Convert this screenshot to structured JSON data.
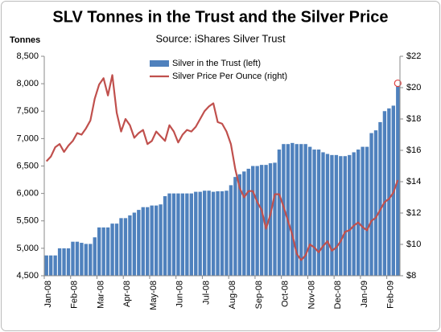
{
  "chart_data": {
    "type": "bar-line",
    "title": "SLV Tonnes in the Trust and the Silver Price",
    "subtitle": "Source: iShares Silver Trust",
    "y_label": "Tonnes",
    "categories": [
      "Jan-08",
      null,
      null,
      null,
      null,
      null,
      "Feb-08",
      null,
      null,
      null,
      null,
      null,
      "Mar-08",
      null,
      null,
      null,
      null,
      null,
      "Apr-08",
      null,
      null,
      null,
      null,
      null,
      "May-08",
      null,
      null,
      null,
      null,
      null,
      "Jun-08",
      null,
      null,
      null,
      null,
      null,
      "Jul-08",
      null,
      null,
      null,
      null,
      null,
      "Aug-08",
      null,
      null,
      null,
      null,
      null,
      "Sep-08",
      null,
      null,
      null,
      null,
      null,
      "Oct-08",
      null,
      null,
      null,
      null,
      null,
      "Nov-08",
      null,
      null,
      null,
      null,
      null,
      "Dec-08",
      null,
      null,
      null,
      null,
      null,
      "Jan-09",
      null,
      null,
      null,
      null,
      null,
      "Feb-09",
      null,
      null
    ],
    "series": [
      {
        "name": "Silver in the Trust (left)",
        "color": "#4f81bd",
        "axis": "y",
        "values": [
          4870,
          4870,
          4870,
          5000,
          5000,
          5000,
          5120,
          5120,
          5100,
          5080,
          5080,
          5200,
          5380,
          5380,
          5380,
          5450,
          5450,
          5550,
          5550,
          5600,
          5650,
          5700,
          5750,
          5750,
          5780,
          5780,
          5800,
          5950,
          6000,
          6000,
          6000,
          6000,
          6000,
          6000,
          6030,
          6030,
          6050,
          6050,
          6030,
          6040,
          6040,
          6050,
          6150,
          6300,
          6350,
          6400,
          6450,
          6500,
          6500,
          6520,
          6520,
          6550,
          6560,
          6800,
          6900,
          6900,
          6920,
          6900,
          6900,
          6900,
          6850,
          6800,
          6800,
          6750,
          6720,
          6700,
          6700,
          6680,
          6680,
          6700,
          6750,
          6800,
          6850,
          6850,
          7100,
          7150,
          7300,
          7500,
          7550,
          7600,
          7950
        ]
      },
      {
        "name": "Silver Price Per Ounce (right)",
        "color": "#c0504d",
        "axis": "y2",
        "values": [
          15.3,
          15.6,
          16.2,
          16.4,
          15.9,
          16.3,
          16.6,
          17.1,
          17.0,
          17.4,
          17.9,
          19.3,
          20.2,
          20.6,
          19.5,
          20.8,
          18.4,
          17.2,
          18.0,
          17.6,
          16.8,
          17.1,
          17.3,
          16.4,
          16.6,
          17.2,
          16.9,
          16.6,
          17.6,
          17.2,
          16.5,
          17.0,
          17.3,
          17.2,
          17.5,
          18.0,
          18.5,
          18.8,
          19.0,
          17.8,
          17.7,
          17.2,
          16.4,
          14.8,
          13.6,
          13.0,
          13.4,
          13.4,
          12.7,
          12.2,
          11.0,
          11.9,
          13.2,
          13.2,
          12.4,
          11.5,
          10.6,
          9.4,
          9.0,
          9.3,
          10.0,
          9.8,
          9.5,
          9.9,
          10.2,
          9.6,
          9.8,
          10.2,
          10.8,
          10.9,
          11.2,
          11.4,
          11.1,
          10.9,
          11.5,
          11.7,
          12.2,
          12.7,
          12.9,
          13.3,
          14.1
        ]
      }
    ],
    "ylim": [
      4500,
      8500
    ],
    "yticks": [
      {
        "value": 4500,
        "label": "4,500"
      },
      {
        "value": 5000,
        "label": "5,000"
      },
      {
        "value": 5500,
        "label": "5,500"
      },
      {
        "value": 6000,
        "label": "6,000"
      },
      {
        "value": 6500,
        "label": "6,500"
      },
      {
        "value": 7000,
        "label": "7,000"
      },
      {
        "value": 7500,
        "label": "7,500"
      },
      {
        "value": 8000,
        "label": "8,000"
      },
      {
        "value": 8500,
        "label": "8,500"
      }
    ],
    "y2lim": [
      8,
      22
    ],
    "y2ticks": [
      {
        "value": 8,
        "label": "$8"
      },
      {
        "value": 10,
        "label": "$10"
      },
      {
        "value": 12,
        "label": "$12"
      },
      {
        "value": 14,
        "label": "$14"
      },
      {
        "value": 16,
        "label": "$16"
      },
      {
        "value": 18,
        "label": "$18"
      },
      {
        "value": 20,
        "label": "$20"
      },
      {
        "value": 22,
        "label": "$22"
      }
    ],
    "grid": false,
    "legend": "top"
  }
}
